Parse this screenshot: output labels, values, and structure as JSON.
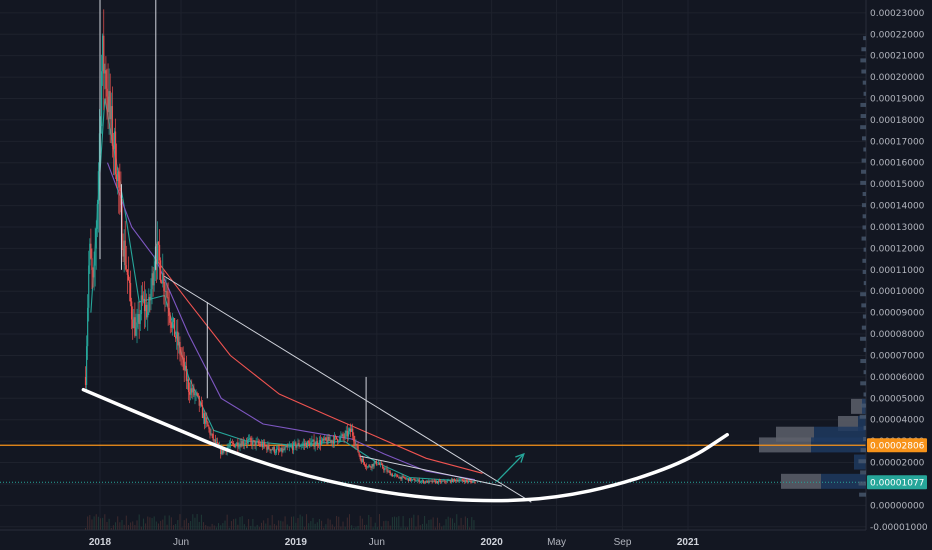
{
  "chart_data": {
    "type": "candlestick",
    "title": "",
    "xlabel": "",
    "ylabel": "",
    "ylim": [
      -1.15e-05,
      0.000236
    ],
    "x_range": [
      "2017-11-15",
      "2021-03-20"
    ],
    "y_ticks": [
      "0.00023000",
      "0.00022000",
      "0.00021000",
      "0.00020000",
      "0.00019000",
      "0.00018000",
      "0.00017000",
      "0.00016000",
      "0.00015000",
      "0.00014000",
      "0.00013000",
      "0.00012000",
      "0.00011000",
      "0.00010000",
      "0.00009000",
      "0.00008000",
      "0.00007000",
      "0.00006000",
      "0.00005000",
      "0.00004000",
      "0.00003000",
      "0.00002000",
      "0.00001000",
      "0.00000000",
      "-0.00001000"
    ],
    "y_tick_values": [
      0.00023,
      0.00022,
      0.00021,
      0.0002,
      0.00019,
      0.00018,
      0.00017,
      0.00016,
      0.00015,
      0.00014,
      0.00013,
      0.00012,
      0.00011,
      0.0001,
      9e-05,
      8e-05,
      7e-05,
      6e-05,
      5e-05,
      4e-05,
      3e-05,
      2e-05,
      1e-05,
      0.0,
      -1e-05
    ],
    "x_ticks": [
      {
        "label": "2018",
        "date": "2018-01-01",
        "year": true
      },
      {
        "label": "Jun",
        "date": "2018-06-01",
        "year": false
      },
      {
        "label": "2019",
        "date": "2019-01-01",
        "year": true
      },
      {
        "label": "Jun",
        "date": "2019-06-01",
        "year": false
      },
      {
        "label": "2020",
        "date": "2020-01-01",
        "year": true
      },
      {
        "label": "May",
        "date": "2020-05-01",
        "year": false
      },
      {
        "label": "Sep",
        "date": "2020-09-01",
        "year": false
      },
      {
        "label": "2021",
        "date": "2021-01-01",
        "year": true
      }
    ],
    "price_path": [
      [
        "2017-12-05",
        6e-05
      ],
      [
        "2017-12-12",
        0.00012
      ],
      [
        "2017-12-20",
        0.0001
      ],
      [
        "2017-12-28",
        0.00015
      ],
      [
        "2018-01-05",
        0.00021
      ],
      [
        "2018-01-12",
        0.0002
      ],
      [
        "2018-01-20",
        0.00018
      ],
      [
        "2018-02-01",
        0.00016
      ],
      [
        "2018-02-10",
        0.00013
      ],
      [
        "2018-02-20",
        0.00011
      ],
      [
        "2018-03-01",
        9e-05
      ],
      [
        "2018-03-10",
        8e-05
      ],
      [
        "2018-03-20",
        9.5e-05
      ],
      [
        "2018-04-01",
        9e-05
      ],
      [
        "2018-04-15",
        0.00012
      ],
      [
        "2018-04-25",
        0.00011
      ],
      [
        "2018-05-05",
        0.0001
      ],
      [
        "2018-05-15",
        8.5e-05
      ],
      [
        "2018-06-01",
        7e-05
      ],
      [
        "2018-06-15",
        5.5e-05
      ],
      [
        "2018-07-01",
        5e-05
      ],
      [
        "2018-07-15",
        4e-05
      ],
      [
        "2018-08-01",
        3e-05
      ],
      [
        "2018-08-15",
        2.5e-05
      ],
      [
        "2018-09-01",
        2.8e-05
      ],
      [
        "2018-10-01",
        3e-05
      ],
      [
        "2018-11-01",
        2.8e-05
      ],
      [
        "2018-12-01",
        2.5e-05
      ],
      [
        "2019-01-01",
        2.8e-05
      ],
      [
        "2019-02-01",
        2.9e-05
      ],
      [
        "2019-03-01",
        3e-05
      ],
      [
        "2019-04-01",
        3.2e-05
      ],
      [
        "2019-04-15",
        3.5e-05
      ],
      [
        "2019-05-01",
        2.2e-05
      ],
      [
        "2019-05-15",
        1.8e-05
      ],
      [
        "2019-06-01",
        2e-05
      ],
      [
        "2019-06-15",
        1.7e-05
      ],
      [
        "2019-07-01",
        1.4e-05
      ],
      [
        "2019-08-01",
        1.2e-05
      ],
      [
        "2019-09-01",
        1.1e-05
      ],
      [
        "2019-10-01",
        1.1e-05
      ],
      [
        "2019-11-01",
        1.2e-05
      ],
      [
        "2019-12-01",
        1.08e-05
      ]
    ],
    "spikes": [
      {
        "date": "2018-01-01",
        "high": 0.000236,
        "low": 0.000115
      },
      {
        "date": "2018-02-10",
        "high": 0.00015,
        "low": 0.00011
      },
      {
        "date": "2018-04-15",
        "high": 0.000236,
        "low": 0.00011
      },
      {
        "date": "2018-07-20",
        "high": 9.5e-05,
        "low": 5e-05
      },
      {
        "date": "2019-05-12",
        "high": 6e-05,
        "low": 3e-05
      }
    ],
    "moving_averages": [
      {
        "color": "#26a69a",
        "points": [
          [
            "2017-12-15",
            9e-05
          ],
          [
            "2018-01-10",
            0.00019
          ],
          [
            "2018-02-15",
            0.00014
          ],
          [
            "2018-03-15",
            9.5e-05
          ],
          [
            "2018-05-01",
            9.8e-05
          ],
          [
            "2018-06-15",
            6e-05
          ],
          [
            "2018-08-01",
            3.5e-05
          ],
          [
            "2018-10-01",
            3e-05
          ],
          [
            "2019-01-01",
            2.8e-05
          ],
          [
            "2019-04-01",
            3e-05
          ],
          [
            "2019-06-01",
            2e-05
          ],
          [
            "2019-08-01",
            1.3e-05
          ],
          [
            "2019-12-01",
            1.1e-05
          ]
        ]
      },
      {
        "color": "#7e57c2",
        "points": [
          [
            "2018-01-15",
            0.00016
          ],
          [
            "2018-03-01",
            0.00013
          ],
          [
            "2018-04-15",
            0.000115
          ],
          [
            "2018-06-15",
            8e-05
          ],
          [
            "2018-08-15",
            5e-05
          ],
          [
            "2018-11-01",
            3.8e-05
          ],
          [
            "2019-02-01",
            3.4e-05
          ],
          [
            "2019-04-15",
            3.1e-05
          ],
          [
            "2019-06-15",
            2.4e-05
          ],
          [
            "2019-09-01",
            1.6e-05
          ],
          [
            "2019-12-01",
            1.2e-05
          ]
        ]
      },
      {
        "color": "#ef5350",
        "points": [
          [
            "2018-04-15",
            0.000115
          ],
          [
            "2018-06-15",
            9.5e-05
          ],
          [
            "2018-09-01",
            7e-05
          ],
          [
            "2018-12-01",
            5.2e-05
          ],
          [
            "2019-03-01",
            4.2e-05
          ],
          [
            "2019-06-01",
            3.2e-05
          ],
          [
            "2019-09-01",
            2.2e-05
          ],
          [
            "2019-12-15",
            1.5e-05
          ]
        ]
      }
    ],
    "trendlines": [
      {
        "color": "#d1d4dc",
        "from": [
          "2018-05-01",
          0.000107
        ],
        "to": [
          "2020-03-15",
          1.5e-06
        ]
      },
      {
        "color": "#d1d4dc",
        "from": [
          "2019-05-01",
          2.3e-05
        ],
        "to": [
          "2020-01-20",
          9e-06
        ]
      }
    ],
    "horizontal_lines": [
      {
        "color": "#f7931a",
        "value": 2.806e-05,
        "style": "solid"
      },
      {
        "color": "#26a69a",
        "value": 1.077e-05,
        "style": "dotted"
      }
    ],
    "support_curve": {
      "color": "#ffffff",
      "points": [
        [
          "2017-12-01",
          5.4e-05
        ],
        [
          "2018-05-01",
          3.8e-05
        ],
        [
          "2018-10-01",
          2.2e-05
        ],
        [
          "2019-03-01",
          1.1e-05
        ],
        [
          "2019-08-01",
          4e-06
        ],
        [
          "2020-01-01",
          1.7e-06
        ],
        [
          "2020-05-01",
          3.5e-06
        ],
        [
          "2020-09-01",
          1e-05
        ],
        [
          "2021-01-01",
          2.1e-05
        ],
        [
          "2021-03-15",
          3.3e-05
        ]
      ]
    },
    "arrow": {
      "color": "#26a69a",
      "from": [
        "2020-01-10",
        1.1e-05
      ],
      "to": [
        "2020-03-01",
        2.4e-05
      ]
    },
    "volume_profile": [
      {
        "price": 4.6e-05,
        "grey": 0.15,
        "blue": 0.0
      },
      {
        "price": 3.8e-05,
        "grey": 0.2,
        "blue": 0.08
      },
      {
        "price": 3.3e-05,
        "grey": 0.38,
        "blue": 0.52
      },
      {
        "price": 2.8e-05,
        "grey": 0.52,
        "blue": 0.55
      },
      {
        "price": 2e-05,
        "grey": 0.0,
        "blue": 0.12
      },
      {
        "price": 1.1e-05,
        "grey": 0.4,
        "blue": 0.45
      },
      {
        "price": 4.6e-05,
        "grey": 0.0,
        "blue": 0.04
      }
    ],
    "price_labels": [
      {
        "text": "0.00002806",
        "value": 2.806e-05,
        "bg": "#f7931a",
        "fg": "#ffffff"
      },
      {
        "text": "0.00001077",
        "value": 1.077e-05,
        "bg": "#26a69a",
        "fg": "#ffffff"
      }
    ]
  }
}
